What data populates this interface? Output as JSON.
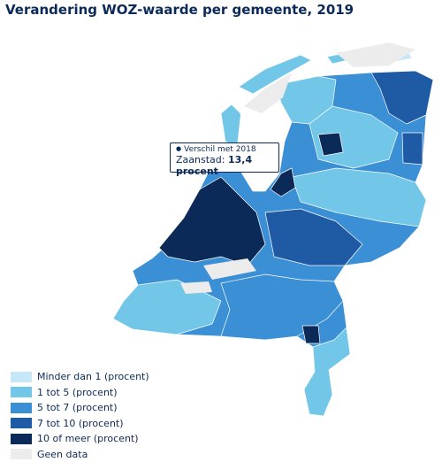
{
  "title": "Verandering WOZ-waarde per gemeente, 2019",
  "tooltip": {
    "heading": "Verschil met 2018",
    "label": "Zaanstad:",
    "value": "13,4 procent"
  },
  "legend": [
    {
      "label": "Minder dan 1 (procent)",
      "color": "#c6e7f8"
    },
    {
      "label": "1 tot 5 (procent)",
      "color": "#72c6e8"
    },
    {
      "label": "5 tot 7 (procent)",
      "color": "#3b8fd4"
    },
    {
      "label": "7 tot 10 (procent)",
      "color": "#1f5aa4"
    },
    {
      "label": "10 of meer (procent)",
      "color": "#0c2a57"
    },
    {
      "label": "Geen data",
      "color": "#ececec"
    }
  ]
}
